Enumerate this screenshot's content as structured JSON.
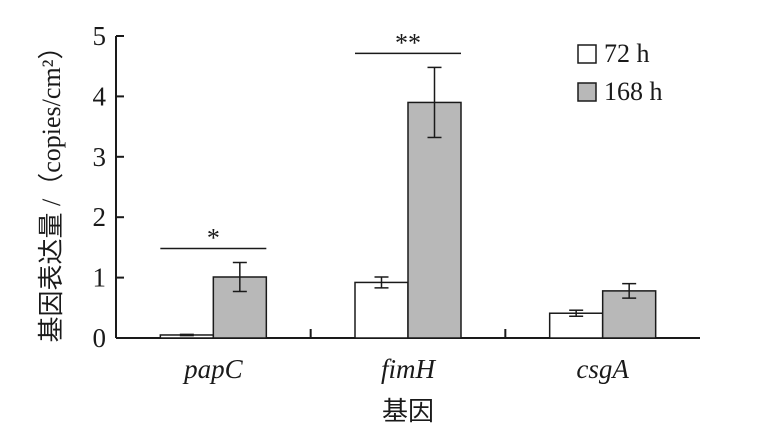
{
  "chart_data": {
    "type": "bar",
    "title": "",
    "categories": [
      "papC",
      "fimH",
      "csgA"
    ],
    "xlabel": "基因",
    "ylabel": "基因表达量 /（copies/cm²）",
    "ylim": [
      0,
      5
    ],
    "yticks": [
      "0",
      "1",
      "2",
      "3",
      "4",
      "5"
    ],
    "grid": false,
    "legend": "top-right",
    "series": [
      {
        "name": "72 h",
        "color": "#ffffff",
        "values": [
          0.05,
          0.92,
          0.41
        ],
        "errors": [
          0.01,
          0.09,
          0.05
        ]
      },
      {
        "name": "168 h",
        "color": "#b8b8b8",
        "values": [
          1.01,
          3.9,
          0.78
        ],
        "errors": [
          0.24,
          0.58,
          0.12
        ]
      }
    ],
    "significance": [
      {
        "category": "papC",
        "label": "*"
      },
      {
        "category": "fimH",
        "label": "**"
      }
    ]
  }
}
